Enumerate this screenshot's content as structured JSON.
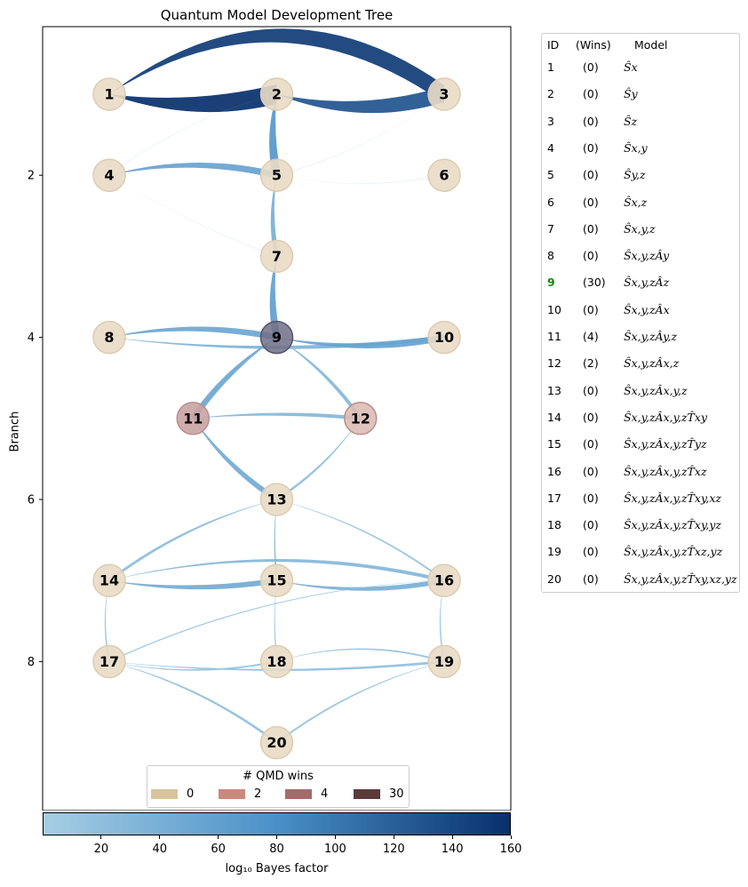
{
  "title": "Quantum Model Development Tree",
  "ylabel": "Branch",
  "y_ticks": [
    "2",
    "4",
    "6",
    "8"
  ],
  "nodes": [
    {
      "id": "1",
      "branch": 1,
      "col": 1,
      "wins": 0
    },
    {
      "id": "2",
      "branch": 1,
      "col": 2,
      "wins": 0
    },
    {
      "id": "3",
      "branch": 1,
      "col": 3,
      "wins": 0
    },
    {
      "id": "4",
      "branch": 2,
      "col": 1,
      "wins": 0
    },
    {
      "id": "5",
      "branch": 2,
      "col": 2,
      "wins": 0
    },
    {
      "id": "6",
      "branch": 2,
      "col": 3,
      "wins": 0
    },
    {
      "id": "7",
      "branch": 3,
      "col": 2,
      "wins": 0
    },
    {
      "id": "8",
      "branch": 4,
      "col": 1,
      "wins": 0
    },
    {
      "id": "9",
      "branch": 4,
      "col": 2,
      "wins": 30
    },
    {
      "id": "10",
      "branch": 4,
      "col": 3,
      "wins": 0
    },
    {
      "id": "11",
      "branch": 5,
      "col": 1.5,
      "wins": 4
    },
    {
      "id": "12",
      "branch": 5,
      "col": 2.5,
      "wins": 2
    },
    {
      "id": "13",
      "branch": 6,
      "col": 2,
      "wins": 0
    },
    {
      "id": "14",
      "branch": 7,
      "col": 1,
      "wins": 0
    },
    {
      "id": "15",
      "branch": 7,
      "col": 2,
      "wins": 0
    },
    {
      "id": "16",
      "branch": 7,
      "col": 3,
      "wins": 0
    },
    {
      "id": "17",
      "branch": 8,
      "col": 1,
      "wins": 0
    },
    {
      "id": "18",
      "branch": 8,
      "col": 2,
      "wins": 0
    },
    {
      "id": "19",
      "branch": 8,
      "col": 3,
      "wins": 0
    },
    {
      "id": "20",
      "branch": 9,
      "col": 2,
      "wins": 0
    }
  ],
  "edges": [
    {
      "from": "1",
      "to": "3",
      "bf": 150,
      "bend": -0.35
    },
    {
      "from": "1",
      "to": "2",
      "bf": 160,
      "bend": 0.12
    },
    {
      "from": "2",
      "to": "3",
      "bf": 130,
      "bend": 0.15
    },
    {
      "from": "2",
      "to": "5",
      "bf": 70,
      "bend": 0.1
    },
    {
      "from": "4",
      "to": "5",
      "bf": 55,
      "bend": -0.12
    },
    {
      "from": "5",
      "to": "7",
      "bf": 40,
      "bend": 0.1
    },
    {
      "from": "7",
      "to": "9",
      "bf": 60,
      "bend": 0.1
    },
    {
      "from": "8",
      "to": "9",
      "bf": 50,
      "bend": -0.1
    },
    {
      "from": "8",
      "to": "10",
      "bf": 35,
      "bend": 0.06
    },
    {
      "from": "9",
      "to": "10",
      "bf": 55,
      "bend": 0.1
    },
    {
      "from": "9",
      "to": "11",
      "bf": 50,
      "bend": 0.1
    },
    {
      "from": "9",
      "to": "12",
      "bf": 30,
      "bend": -0.1
    },
    {
      "from": "11",
      "to": "12",
      "bf": 30,
      "bend": -0.05
    },
    {
      "from": "11",
      "to": "13",
      "bf": 45,
      "bend": 0.1
    },
    {
      "from": "12",
      "to": "13",
      "bf": 20,
      "bend": -0.1
    },
    {
      "from": "13",
      "to": "14",
      "bf": 22,
      "bend": 0.1
    },
    {
      "from": "13",
      "to": "15",
      "bf": 15,
      "bend": 0.05
    },
    {
      "from": "13",
      "to": "16",
      "bf": 15,
      "bend": -0.1
    },
    {
      "from": "14",
      "to": "16",
      "bf": 30,
      "bend": -0.12
    },
    {
      "from": "14",
      "to": "15",
      "bf": 45,
      "bend": 0.08
    },
    {
      "from": "15",
      "to": "16",
      "bf": 40,
      "bend": 0.1
    },
    {
      "from": "14",
      "to": "17",
      "bf": 12,
      "bend": 0.1
    },
    {
      "from": "16",
      "to": "17",
      "bf": 10,
      "bend": 0.1
    },
    {
      "from": "16",
      "to": "19",
      "bf": 12,
      "bend": 0.1
    },
    {
      "from": "17",
      "to": "19",
      "bf": 20,
      "bend": 0.05
    },
    {
      "from": "17",
      "to": "20",
      "bf": 20,
      "bend": -0.1
    },
    {
      "from": "17",
      "to": "18",
      "bf": 15,
      "bend": 0.1
    },
    {
      "from": "18",
      "to": "19",
      "bf": 15,
      "bend": -0.15
    },
    {
      "from": "19",
      "to": "20",
      "bf": 15,
      "bend": 0.1
    },
    {
      "from": "15",
      "to": "18",
      "bf": 10,
      "bend": 0.05
    },
    {
      "from": "4",
      "to": "7",
      "bf": 3,
      "bend": 0.05
    },
    {
      "from": "5",
      "to": "6",
      "bf": 3,
      "bend": 0.1
    },
    {
      "from": "2",
      "to": "4",
      "bf": 3,
      "bend": 0.1
    },
    {
      "from": "3",
      "to": "5",
      "bf": 3,
      "bend": -0.1
    }
  ],
  "legend": {
    "headers": {
      "id": "ID",
      "wins": "(Wins)",
      "model": "Model"
    },
    "rows": [
      {
        "id": "1",
        "wins": "(0)",
        "model": "Ŝx"
      },
      {
        "id": "2",
        "wins": "(0)",
        "model": "Ŝy"
      },
      {
        "id": "3",
        "wins": "(0)",
        "model": "Ŝz"
      },
      {
        "id": "4",
        "wins": "(0)",
        "model": "Ŝx,y"
      },
      {
        "id": "5",
        "wins": "(0)",
        "model": "Ŝy,z"
      },
      {
        "id": "6",
        "wins": "(0)",
        "model": "Ŝx,z"
      },
      {
        "id": "7",
        "wins": "(0)",
        "model": "Ŝx,y,z"
      },
      {
        "id": "8",
        "wins": "(0)",
        "model": "Ŝx,y,zÂy"
      },
      {
        "id": "9",
        "wins": "(30)",
        "model": "Ŝx,y,zÂz",
        "winner": true
      },
      {
        "id": "10",
        "wins": "(0)",
        "model": "Ŝx,y,zÂx"
      },
      {
        "id": "11",
        "wins": "(4)",
        "model": "Ŝx,y,zÂy,z"
      },
      {
        "id": "12",
        "wins": "(2)",
        "model": "Ŝx,y,zÂx,z"
      },
      {
        "id": "13",
        "wins": "(0)",
        "model": "Ŝx,y,zÂx,y,z"
      },
      {
        "id": "14",
        "wins": "(0)",
        "model": "Ŝx,y,zÂx,y,zT̂xy"
      },
      {
        "id": "15",
        "wins": "(0)",
        "model": "Ŝx,y,zÂx,y,zT̂yz"
      },
      {
        "id": "16",
        "wins": "(0)",
        "model": "Ŝx,y,zÂx,y,zT̂xz"
      },
      {
        "id": "17",
        "wins": "(0)",
        "model": "Ŝx,y,zÂx,y,zT̂xy,xz"
      },
      {
        "id": "18",
        "wins": "(0)",
        "model": "Ŝx,y,zÂx,y,zT̂xy,yz"
      },
      {
        "id": "19",
        "wins": "(0)",
        "model": "Ŝx,y,zÂx,y,zT̂xz,yz"
      },
      {
        "id": "20",
        "wins": "(0)",
        "model": "Ŝx,y,zÂx,y,zT̂xy,xz,yz"
      }
    ]
  },
  "wins_legend": {
    "title": "# QMD wins",
    "items": [
      {
        "label": "0",
        "color": "#d8c39d"
      },
      {
        "label": "2",
        "color": "#c9897d"
      },
      {
        "label": "4",
        "color": "#a56b6b"
      },
      {
        "label": "30",
        "color": "#5c3a3a"
      }
    ]
  },
  "colorbar": {
    "label": "log₁₀ Bayes factor",
    "ticks": [
      "20",
      "40",
      "60",
      "80",
      "100",
      "120",
      "140",
      "160"
    ],
    "min": 0,
    "max": 160,
    "color_low": "#a6cee3",
    "color_high": "#08306b"
  },
  "colors": {
    "node_default": "#e9dcc6",
    "node_11": "#c9a3a3",
    "node_12": "#dbbcb5",
    "node_9": "#716f86"
  }
}
